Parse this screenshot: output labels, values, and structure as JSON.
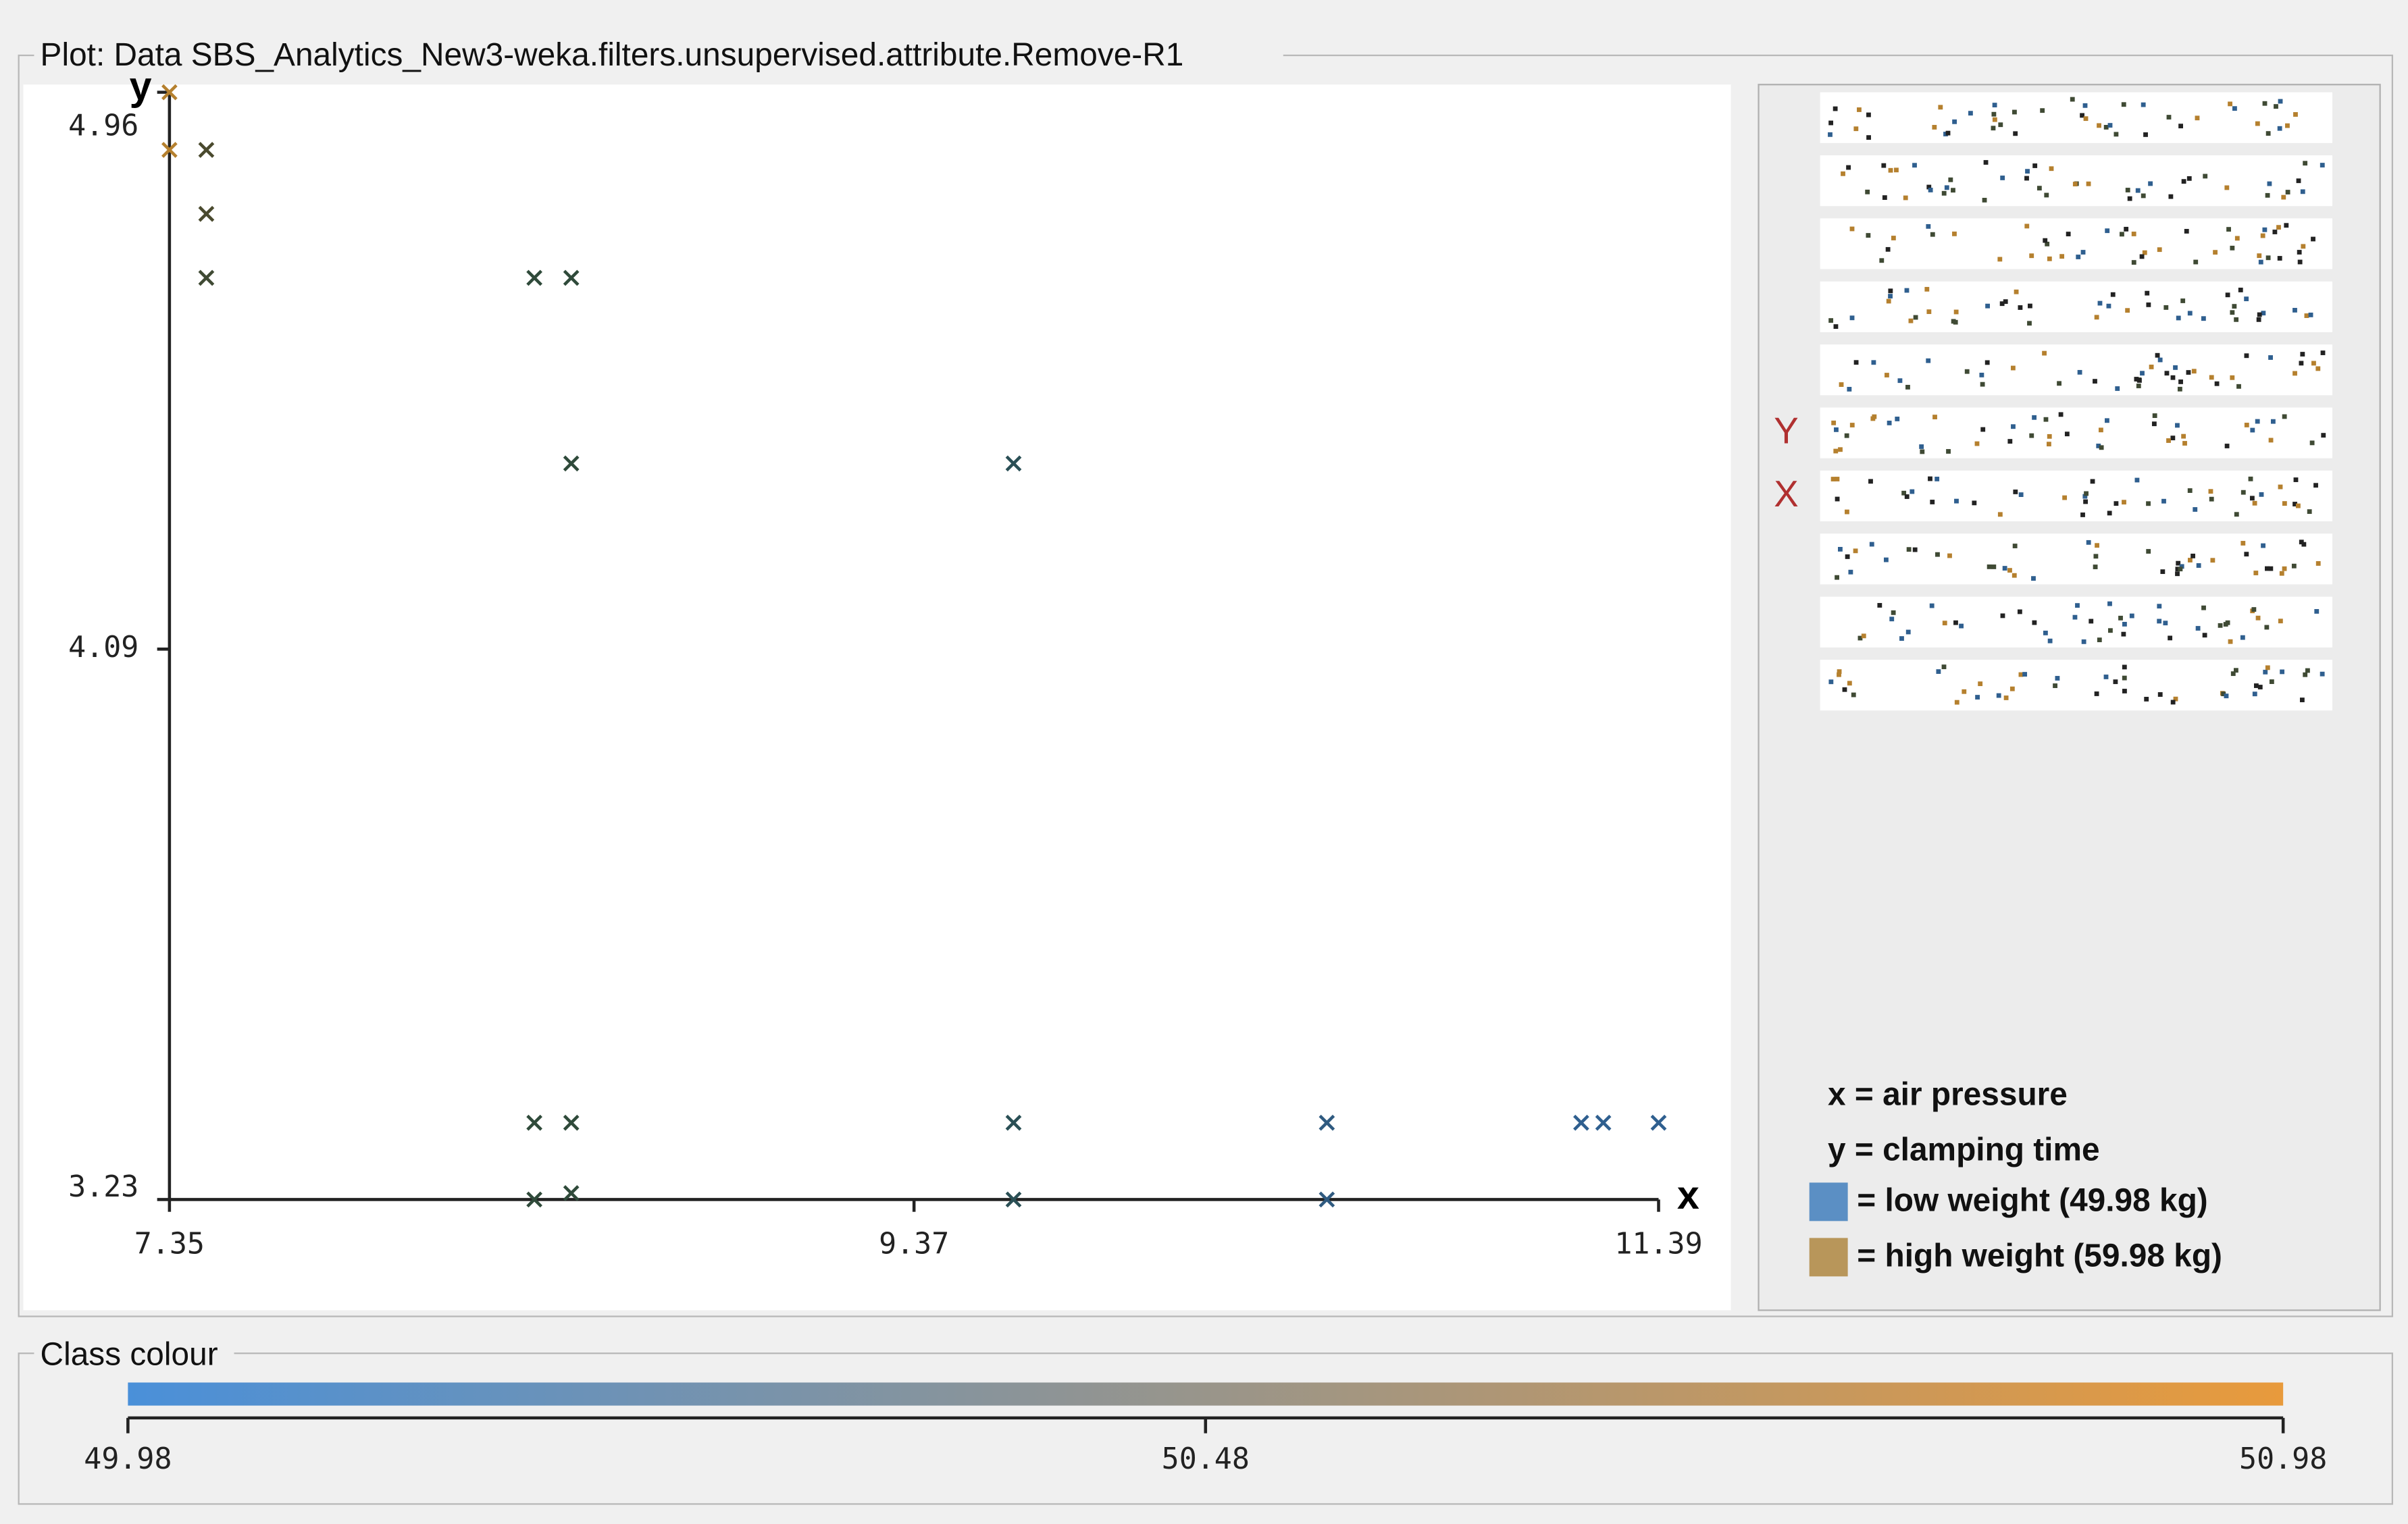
{
  "panel_title": "Plot: Data SBS_Analytics_New3-weka.filters.unsupervised.attribute.Remove-R1",
  "chart_data": {
    "type": "scatter",
    "x_label": "x",
    "y_label": "y",
    "x": [
      7.35,
      7.35,
      7.45,
      7.45,
      7.45,
      8.34,
      8.44,
      8.44,
      9.64,
      8.34,
      8.44,
      9.64,
      10.49,
      11.18,
      11.24,
      11.39,
      8.34,
      8.44,
      9.64,
      10.49
    ],
    "values": [
      4.96,
      4.87,
      4.87,
      4.77,
      4.67,
      4.67,
      4.67,
      4.38,
      4.38,
      3.35,
      3.35,
      3.35,
      3.35,
      3.35,
      3.35,
      3.35,
      3.23,
      3.24,
      3.23,
      3.23
    ],
    "point_colors": [
      "#b5802e",
      "#b5802e",
      "#4a4a2e",
      "#4a4a2e",
      "#3f4a34",
      "#2f4a3a",
      "#2f4a3a",
      "#2f4a3a",
      "#2a4f55",
      "#2f4a3a",
      "#2f4a3a",
      "#2a4f55",
      "#2f5a80",
      "#2f5f8f",
      "#2f5f8f",
      "#2f5f8f",
      "#2f4a3a",
      "#2f4a3a",
      "#2a4f55",
      "#2f5a80"
    ],
    "xlim": [
      7.35,
      11.39
    ],
    "ylim": [
      3.23,
      4.96
    ],
    "xticks": [
      7.35,
      9.37,
      11.39
    ],
    "yticks": [
      3.23,
      4.09,
      4.96
    ]
  },
  "attribute_strip_labels": {
    "5": "Y",
    "6": "X"
  },
  "legend": {
    "items": [
      {
        "text": "x = air pressure"
      },
      {
        "text": "y = clamping time"
      },
      {
        "text": "= low weight (49.98 kg)",
        "color": "#5b8fc4"
      },
      {
        "text": "= high weight (59.98 kg)",
        "color": "#b8965a"
      }
    ]
  },
  "class_colour": {
    "title": "Class colour",
    "lim": [
      49.98,
      50.98
    ],
    "ticks": [
      49.98,
      50.48,
      50.98
    ],
    "colors": [
      "#4a90d9",
      "#e89a3c"
    ]
  }
}
